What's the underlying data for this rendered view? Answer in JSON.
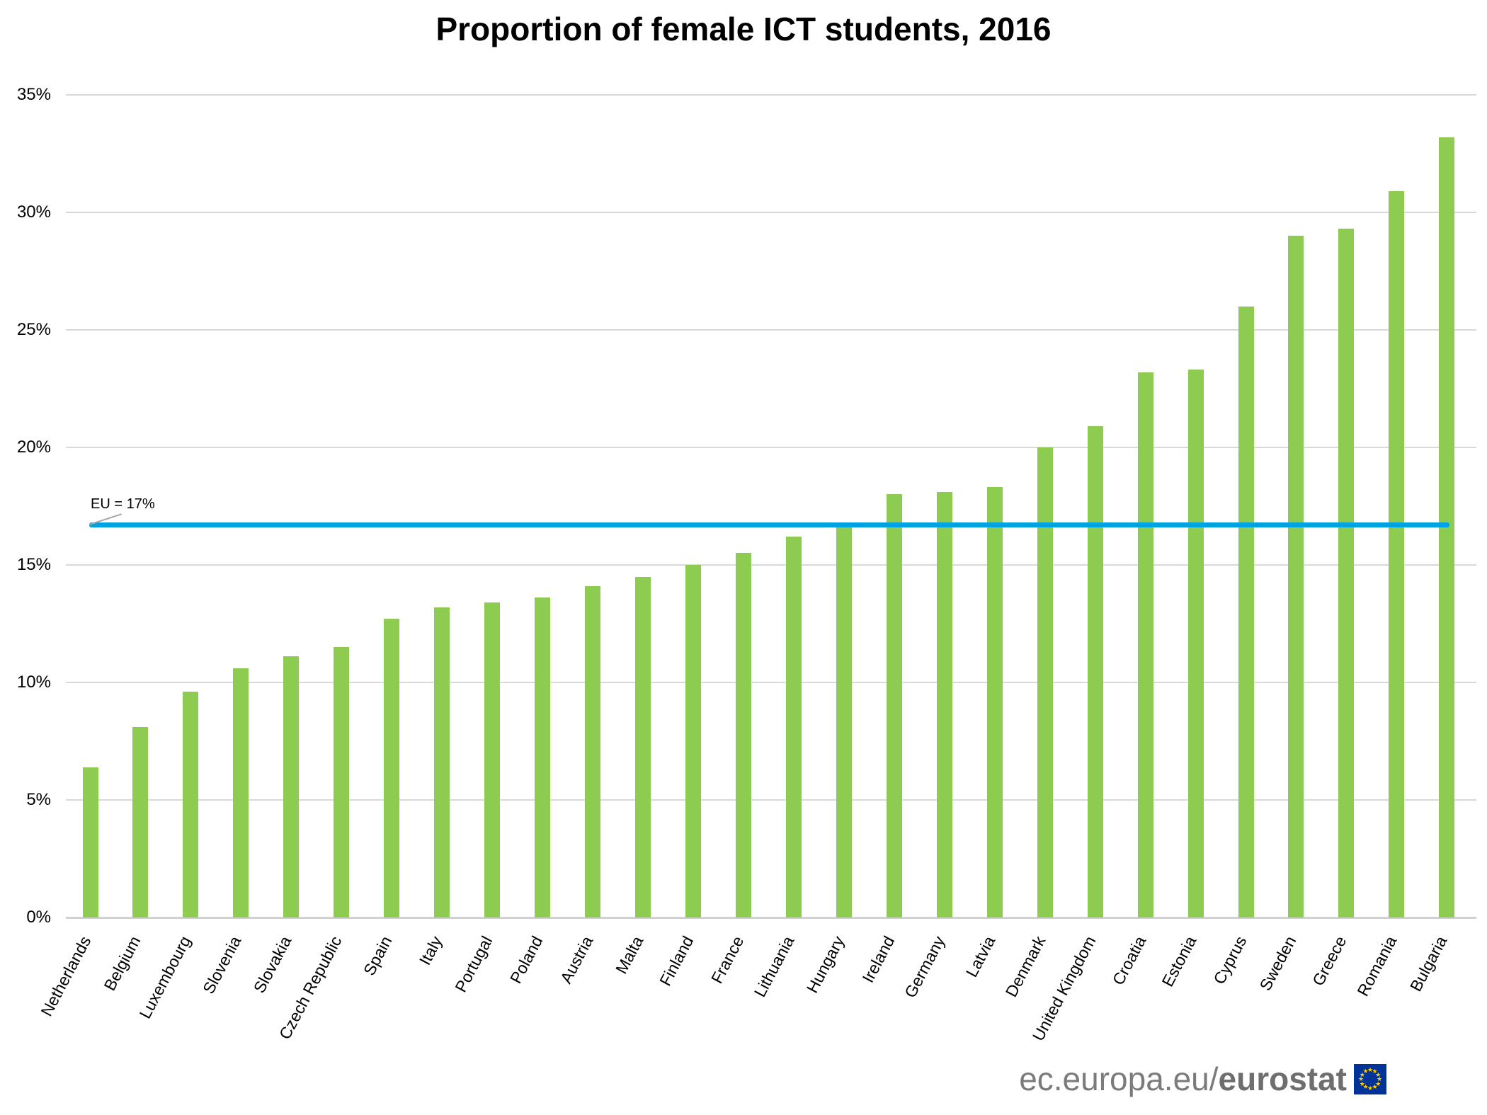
{
  "chart_data": {
    "type": "bar",
    "title": "Proportion of female ICT students, 2016",
    "categories": [
      "Netherlands",
      "Belgium",
      "Luxembourg",
      "Slovenia",
      "Slovakia",
      "Czech Republic",
      "Spain",
      "Italy",
      "Portugal",
      "Poland",
      "Austria",
      "Malta",
      "Finland",
      "France",
      "Lithuania",
      "Hungary",
      "Ireland",
      "Germany",
      "Latvia",
      "Denmark",
      "United Kingdom",
      "Croatia",
      "Estonia",
      "Cyprus",
      "Sweden",
      "Greece",
      "Romania",
      "Bulgaria"
    ],
    "values": [
      6.4,
      8.1,
      9.6,
      10.6,
      11.1,
      11.5,
      12.7,
      13.2,
      13.4,
      13.6,
      14.1,
      14.5,
      15.0,
      15.5,
      16.2,
      16.6,
      18.0,
      18.1,
      18.3,
      20.0,
      20.9,
      23.2,
      23.3,
      26.0,
      29.0,
      29.3,
      30.9,
      33.2
    ],
    "unit": "%",
    "xlabel": "",
    "ylabel": "",
    "ylim": [
      0,
      35
    ],
    "yticks": [
      0,
      5,
      10,
      15,
      20,
      25,
      30,
      35
    ],
    "ytick_suffix": "%",
    "grid": "horizontal-on",
    "legend": "none",
    "bar_color": "#8DCB51",
    "gridline_color": "#D9D9D9",
    "reference_line": {
      "label": "EU = 17%",
      "value": 16.7,
      "color": "#00A3E2"
    }
  },
  "footer": {
    "url_prefix": "ec.europa.eu/",
    "brand": "eurostat",
    "text_color": "#7B7B7B",
    "flag_colors": {
      "field": "#003399",
      "stars": "#FFCC00"
    }
  }
}
